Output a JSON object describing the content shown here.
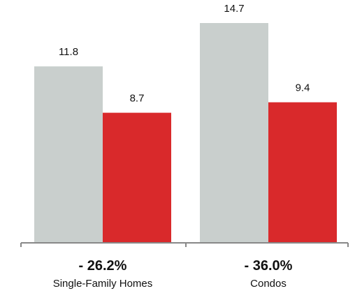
{
  "chart_data": {
    "type": "bar",
    "categories": [
      "Single-Family Homes",
      "Condos"
    ],
    "series": [
      {
        "values": [
          11.8,
          14.7
        ],
        "color": "#c9cfcd"
      },
      {
        "values": [
          8.7,
          9.4
        ],
        "color": "#d9292b"
      }
    ],
    "change_labels": [
      "- 26.2%",
      "- 36.0%"
    ],
    "ylim": [
      0,
      14.7
    ],
    "grid": false,
    "legend": "none"
  }
}
